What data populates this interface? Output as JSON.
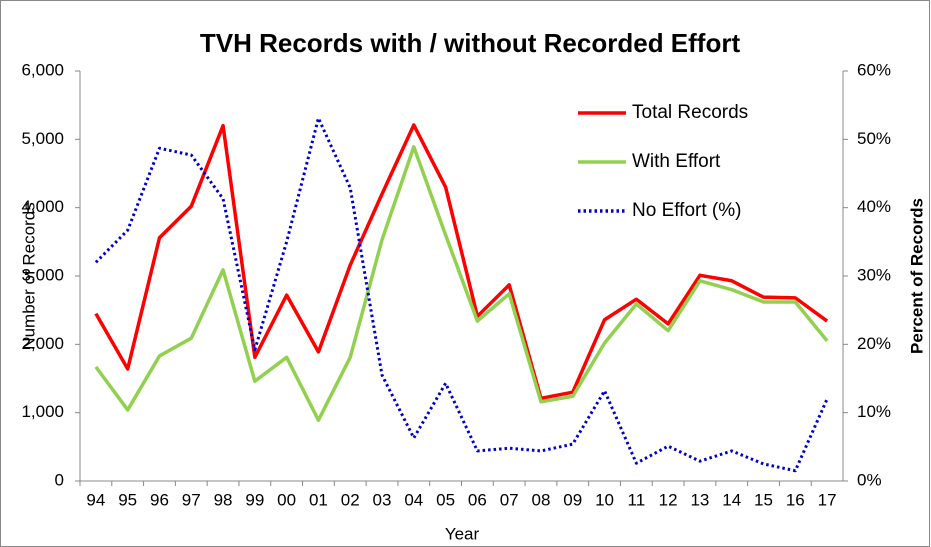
{
  "chart_data": {
    "type": "line",
    "title": "TVH Records with / without Recorded Effort",
    "x_label": "Year",
    "y_label": "Number of Records",
    "y2_label": "Percent of Records",
    "categories": [
      "94",
      "95",
      "96",
      "97",
      "98",
      "99",
      "00",
      "01",
      "02",
      "03",
      "04",
      "05",
      "06",
      "07",
      "08",
      "09",
      "10",
      "11",
      "12",
      "13",
      "14",
      "15",
      "16",
      "17"
    ],
    "series": [
      {
        "name": "Total Records",
        "color": "#ff0000",
        "style": "solid",
        "values": [
          2450,
          1640,
          3560,
          4020,
          5200,
          1810,
          2720,
          1890,
          3160,
          4200,
          5210,
          4300,
          2410,
          2870,
          1210,
          1300,
          2360,
          2660,
          2300,
          3010,
          2930,
          2690,
          2680,
          2340
        ]
      },
      {
        "name": "With Effort",
        "color": "#92d050",
        "style": "solid",
        "values": [
          1670,
          1040,
          1830,
          2090,
          3090,
          1460,
          1810,
          890,
          1810,
          3530,
          4890,
          3600,
          2340,
          2740,
          1160,
          1240,
          2020,
          2590,
          2200,
          2930,
          2800,
          2620,
          2620,
          2050
        ]
      },
      {
        "name": "No Effort (%)",
        "color": "#0000cc",
        "style": "dotted",
        "axis": "y2",
        "values": [
          32,
          36.7,
          48.7,
          47.7,
          41.3,
          19.2,
          35,
          53.1,
          42.9,
          15.5,
          6.3,
          14.3,
          4.4,
          4.8,
          4.4,
          5.4,
          13.2,
          2.6,
          5.1,
          2.9,
          4.4,
          2.5,
          1.5,
          12
        ]
      }
    ],
    "ylim": [
      0,
      6000
    ],
    "yticks": [
      0,
      {
        "value": 1000,
        "label": "1,000"
      },
      {
        "value": 2000,
        "label": "2,000"
      },
      {
        "value": 3000,
        "label": "3,000"
      },
      {
        "value": 4000,
        "label": "4,000"
      },
      {
        "value": 5000,
        "label": "5,000"
      },
      {
        "value": 6000,
        "label": "6,000"
      }
    ],
    "y2lim": [
      0,
      60
    ],
    "y2ticks": [
      {
        "value": 0,
        "label": "0%"
      },
      {
        "value": 10,
        "label": "10%"
      },
      {
        "value": 20,
        "label": "20%"
      },
      {
        "value": 30,
        "label": "30%"
      },
      {
        "value": 40,
        "label": "40%"
      },
      {
        "value": 50,
        "label": "50%"
      },
      {
        "value": 60,
        "label": "60%"
      }
    ],
    "grid": false
  }
}
